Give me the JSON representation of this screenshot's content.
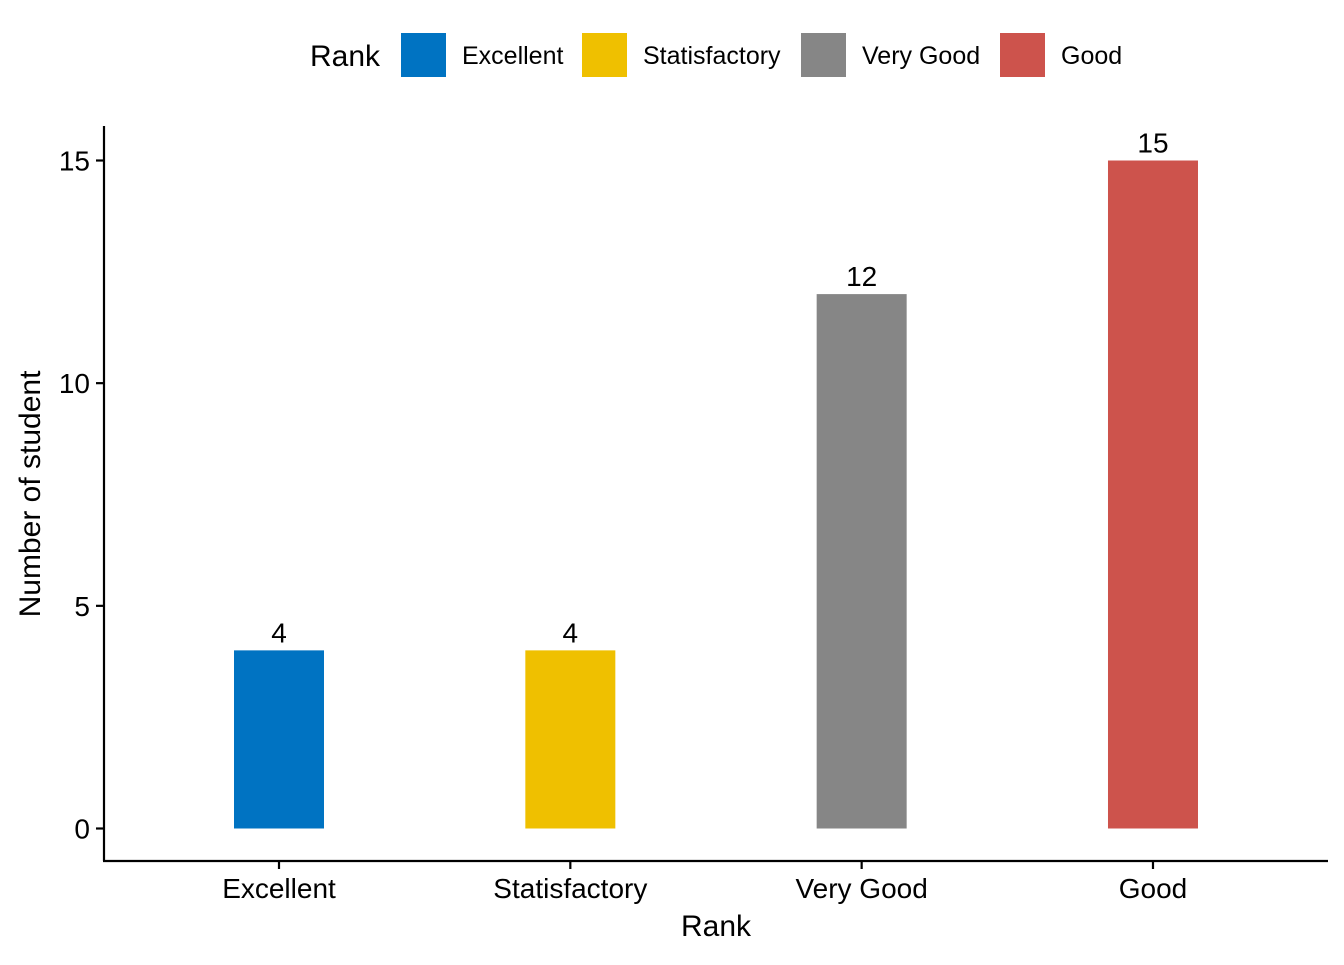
{
  "chart_data": {
    "type": "bar",
    "title": "",
    "xlabel": "Rank",
    "ylabel": "Number of student",
    "categories": [
      "Excellent",
      "Statisfactory",
      "Very Good",
      "Good"
    ],
    "values": [
      4,
      4,
      12,
      15
    ],
    "colors": [
      "#0073C2",
      "#EFC000",
      "#868686",
      "#CD534C"
    ],
    "ylim": [
      0,
      15
    ],
    "yticks": [
      0,
      5,
      10,
      15
    ],
    "grid": false,
    "legend": {
      "title": "Rank",
      "position": "top",
      "entries": [
        "Excellent",
        "Statisfactory",
        "Very Good",
        "Good"
      ]
    },
    "data_labels": [
      "4",
      "4",
      "12",
      "15"
    ]
  }
}
